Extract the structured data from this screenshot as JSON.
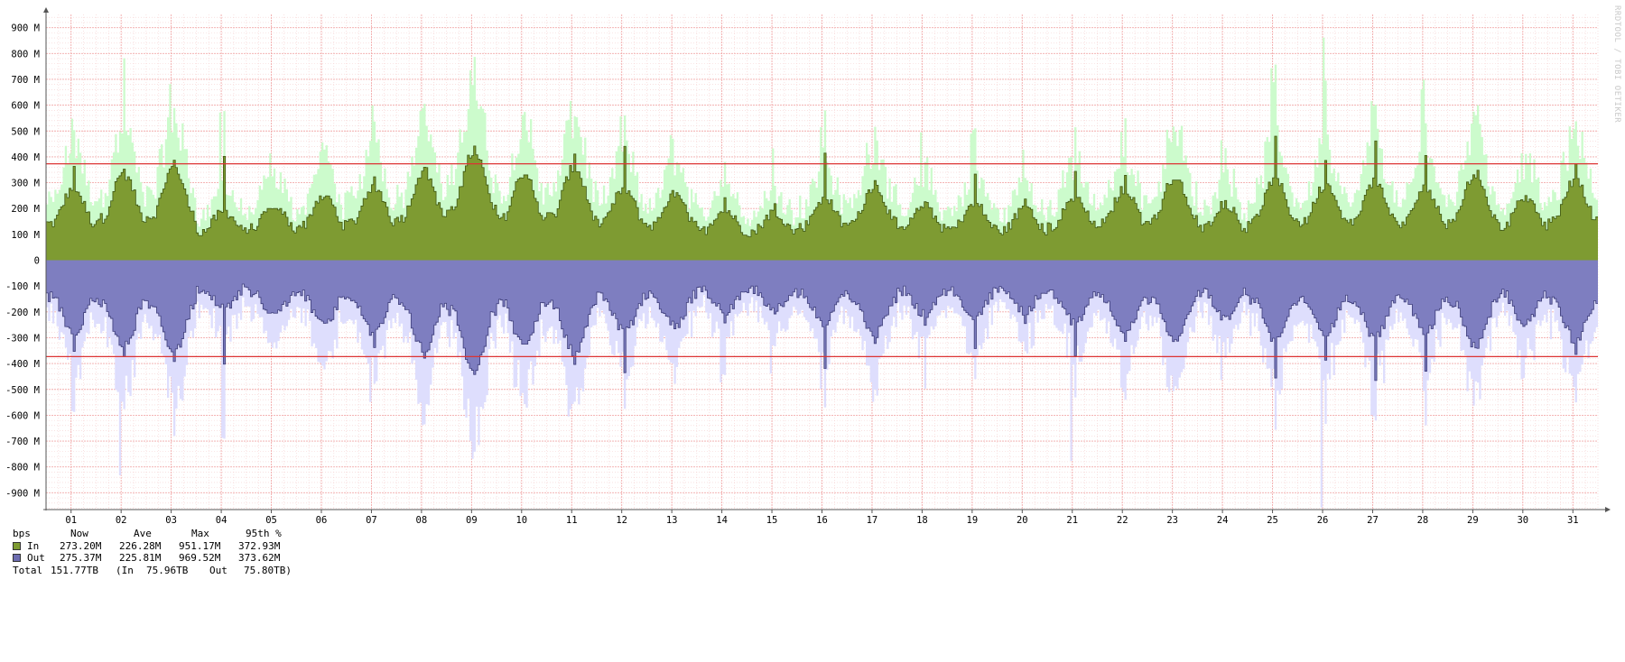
{
  "watermark": "RRDTOOL / TOBI OETIKER",
  "chart_data": {
    "type": "area",
    "title": "",
    "xlabel": "",
    "ylabel": "",
    "ylim": [
      -975,
      975
    ],
    "y_unit": "M",
    "y_ticks": [
      900,
      800,
      700,
      600,
      500,
      400,
      300,
      200,
      100,
      0,
      -100,
      -200,
      -300,
      -400,
      -500,
      -600,
      -700,
      -800,
      -900
    ],
    "y_tick_labels": [
      "900 M",
      "800 M",
      "700 M",
      "600 M",
      "500 M",
      "400 M",
      "300 M",
      "200 M",
      "100 M",
      "0",
      "-100 M",
      "-200 M",
      "-300 M",
      "-400 M",
      "-500 M",
      "-600 M",
      "-700 M",
      "-800 M",
      "-900 M"
    ],
    "x_categories": [
      "01",
      "02",
      "03",
      "04",
      "05",
      "06",
      "07",
      "08",
      "09",
      "10",
      "11",
      "12",
      "13",
      "14",
      "15",
      "16",
      "17",
      "18",
      "19",
      "20",
      "21",
      "22",
      "23",
      "24",
      "25",
      "26",
      "27",
      "28",
      "29",
      "30",
      "31"
    ],
    "grid": true,
    "threshold_95th": 372.93,
    "colors": {
      "in_avg": "#7e9b32",
      "in_avg_line": "#3f5712",
      "in_max": "#ccfbcc",
      "out_avg": "#7e7ec0",
      "out_avg_line": "#3c3c78",
      "out_max": "#dedefd",
      "threshold": "#dd3333",
      "grid_minor": "#f5cfcf",
      "grid_major": "#f2aaaa"
    },
    "series": [
      {
        "name": "In",
        "daily_avg": [
          250,
          300,
          320,
          170,
          200,
          230,
          260,
          310,
          380,
          300,
          320,
          250,
          230,
          180,
          170,
          220,
          260,
          190,
          200,
          180,
          220,
          250,
          290,
          200,
          280,
          260,
          270,
          250,
          300,
          220,
          280
        ],
        "daily_peak": [
          370,
          380,
          400,
          415,
          200,
          260,
          350,
          390,
          460,
          330,
          415,
          445,
          270,
          250,
          230,
          425,
          330,
          250,
          350,
          260,
          370,
          330,
          310,
          240,
          480,
          420,
          470,
          450,
          350,
          270,
          395
        ],
        "max_envelope_peak": [
          600,
          830,
          690,
          640,
          430,
          470,
          620,
          670,
          840,
          600,
          630,
          560,
          520,
          500,
          450,
          580,
          550,
          510,
          530,
          450,
          600,
          550,
          520,
          480,
          760,
          950,
          700,
          730,
          600,
          480,
          550
        ]
      },
      {
        "name": "Out",
        "daily_avg": [
          250,
          300,
          320,
          170,
          200,
          230,
          260,
          310,
          380,
          300,
          320,
          250,
          230,
          180,
          170,
          220,
          260,
          190,
          200,
          180,
          220,
          250,
          290,
          200,
          280,
          260,
          270,
          250,
          300,
          220,
          280
        ],
        "daily_peak": [
          365,
          375,
          395,
          410,
          205,
          255,
          355,
          385,
          455,
          325,
          405,
          445,
          275,
          245,
          225,
          420,
          335,
          255,
          345,
          255,
          375,
          325,
          315,
          235,
          475,
          425,
          470,
          445,
          355,
          265,
          400
        ],
        "max_envelope_peak": [
          590,
          840,
          680,
          720,
          440,
          460,
          610,
          660,
          800,
          610,
          620,
          640,
          510,
          490,
          440,
          570,
          560,
          500,
          540,
          440,
          780,
          540,
          510,
          470,
          760,
          970,
          690,
          720,
          590,
          480,
          550
        ]
      }
    ]
  },
  "legend": {
    "header": {
      "unit": "bps",
      "now": "Now",
      "ave": "Ave",
      "max": "Max",
      "pct": "95th %"
    },
    "rows": [
      {
        "label": "In",
        "now": "273.20M",
        "ave": "226.28M",
        "max": "951.17M",
        "pct": "372.93M",
        "color": "#7e9b32"
      },
      {
        "label": "Out",
        "now": "275.37M",
        "ave": "225.81M",
        "max": "969.52M",
        "pct": "373.62M",
        "color": "#6c6cb0"
      }
    ],
    "total": {
      "label": "Total",
      "value": "151.77TB",
      "in_label": "(In",
      "in_value": "75.96TB",
      "out_label": "Out",
      "out_value": "75.80TB)"
    }
  }
}
